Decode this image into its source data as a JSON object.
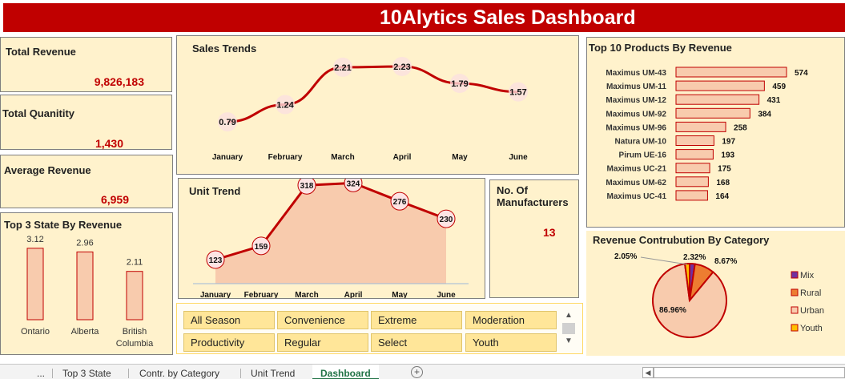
{
  "title": "10Alytics Sales Dashboard",
  "kpis": {
    "total_revenue": {
      "label": "Total Revenue",
      "value": "9,826,183"
    },
    "total_quantity": {
      "label": "Total Quanitity",
      "value": "1,430"
    },
    "average_revenue": {
      "label": "Average Revenue",
      "value": "6,959"
    }
  },
  "manufacturers": {
    "label": "No. Of Manufacturers",
    "value": "13"
  },
  "colors": {
    "accent": "#c00000",
    "panel": "#fff2cc",
    "bar_fill": "#f8cbad",
    "area_fill": "#f8cbad",
    "slicer": "#ffe699"
  },
  "chart_data": [
    {
      "type": "bar",
      "title": "Top 3 State By Revenue",
      "categories": [
        "Ontario",
        "Alberta",
        "British Columbia"
      ],
      "category_lines": [
        [
          "Ontario"
        ],
        [
          "Alberta"
        ],
        [
          "British",
          "Columbia"
        ]
      ],
      "values": [
        3.12,
        2.96,
        2.11
      ],
      "labels": [
        "3.12",
        "2.96",
        "2.11"
      ]
    },
    {
      "type": "line",
      "title": "Sales Trends",
      "categories": [
        "January",
        "February",
        "March",
        "April",
        "May",
        "June"
      ],
      "values": [
        0.79,
        1.24,
        2.21,
        2.23,
        1.79,
        1.57
      ],
      "labels": [
        "0.79",
        "1.24",
        "2.21",
        "2.23",
        "1.79",
        "1.57"
      ]
    },
    {
      "type": "area",
      "title": "Unit Trend",
      "categories": [
        "January",
        "February",
        "March",
        "April",
        "May",
        "June"
      ],
      "values": [
        123,
        159,
        318,
        324,
        276,
        230
      ]
    },
    {
      "type": "bar",
      "orientation": "horizontal",
      "title": "Top 10 Products By Revenue",
      "categories": [
        "Maximus UM-43",
        "Maximus UM-11",
        "Maximus UM-12",
        "Maximus UM-92",
        "Maximus UM-96",
        "Natura UM-10",
        "Pirum UE-16",
        "Maximus UC-21",
        "Maximus UM-62",
        "Maximus UC-41"
      ],
      "values": [
        574,
        459,
        431,
        384,
        258,
        197,
        193,
        175,
        168,
        164
      ]
    },
    {
      "type": "pie",
      "title": "Revenue Contrubution By Category",
      "categories": [
        "Mix",
        "Rural",
        "Urban",
        "Youth"
      ],
      "values": [
        2.32,
        8.67,
        86.96,
        2.05
      ],
      "labels": [
        "2.32%",
        "8.67%",
        "86.96%",
        "2.05%"
      ],
      "colors": [
        "#7030a0",
        "#ed7d31",
        "#f8cbad",
        "#ffc000"
      ],
      "legend": "right"
    }
  ],
  "slicer": {
    "items": [
      "All Season",
      "Convenience",
      "Extreme",
      "Moderation",
      "Productivity",
      "Regular",
      "Select",
      "Youth"
    ],
    "scroll_up_icon": "caret-up-icon",
    "scroll_down_icon": "caret-down-icon"
  },
  "tabs": {
    "ellipsis": "...",
    "items": [
      "Top 3 State",
      "Contr. by Category",
      "Unit Trend"
    ],
    "active": "Dashboard",
    "add_icon": "plus-circle-icon"
  }
}
